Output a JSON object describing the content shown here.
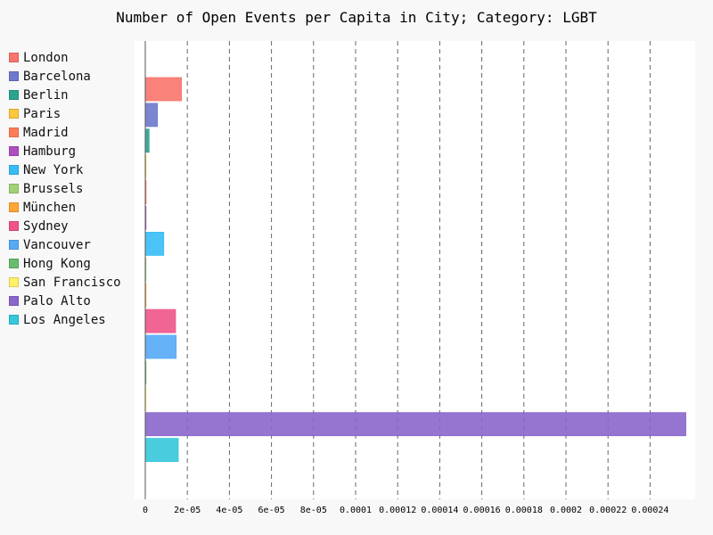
{
  "chart_data": {
    "type": "bar",
    "orientation": "horizontal",
    "title": "Number of Open Events per Capita in City; Category: LGBT",
    "xlabel": "",
    "ylabel": "",
    "xlim": [
      0,
      0.000259
    ],
    "grid": "x-dashed",
    "legend": "left",
    "x_ticks": [
      "0",
      "2e-05",
      "4e-05",
      "6e-05",
      "8e-05",
      "0.0001",
      "0.00012",
      "0.00014",
      "0.00016",
      "0.00018",
      "0.0002",
      "0.00022",
      "0.00024"
    ],
    "x_tick_values": [
      0,
      2e-05,
      4e-05,
      6e-05,
      8e-05,
      0.0001,
      0.00012,
      0.00014,
      0.00016,
      0.00018,
      0.0002,
      0.00022,
      0.00024
    ],
    "series": [
      {
        "name": "London",
        "value": 1.72e-05,
        "color": "#f8756b"
      },
      {
        "name": "Barcelona",
        "value": 5.8e-06,
        "color": "#6e78cc"
      },
      {
        "name": "Berlin",
        "value": 1.8e-06,
        "color": "#2aa38f"
      },
      {
        "name": "Paris",
        "value": 2e-07,
        "color": "#ffc73b"
      },
      {
        "name": "Madrid",
        "value": 4e-07,
        "color": "#ff7e57"
      },
      {
        "name": "Hamburg",
        "value": 1e-07,
        "color": "#ae4fc0"
      },
      {
        "name": "New York",
        "value": 8.8e-06,
        "color": "#37bdf6"
      },
      {
        "name": "Brussels",
        "value": 0.0,
        "color": "#a1d276"
      },
      {
        "name": "München",
        "value": 1e-07,
        "color": "#ffa635"
      },
      {
        "name": "Sydney",
        "value": 1.44e-05,
        "color": "#f0548a"
      },
      {
        "name": "Vancouver",
        "value": 1.47e-05,
        "color": "#55aaf6"
      },
      {
        "name": "Hong Kong",
        "value": 1e-07,
        "color": "#68bc6e"
      },
      {
        "name": "San Francisco",
        "value": 2e-07,
        "color": "#fff066"
      },
      {
        "name": "Palo Alto",
        "value": 0.000257,
        "color": "#8a66cb"
      },
      {
        "name": "Los Angeles",
        "value": 1.57e-05,
        "color": "#35c8da"
      }
    ]
  }
}
